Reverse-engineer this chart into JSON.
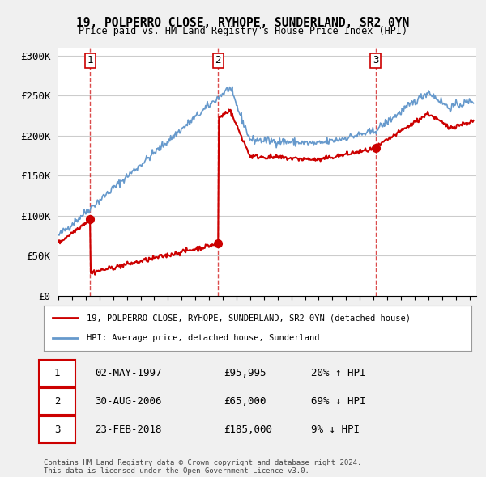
{
  "title": "19, POLPERRO CLOSE, RYHOPE, SUNDERLAND, SR2 0YN",
  "subtitle": "Price paid vs. HM Land Registry's House Price Index (HPI)",
  "ylim": [
    0,
    310000
  ],
  "xlim_start": 1995.0,
  "xlim_end": 2025.5,
  "yticks": [
    0,
    50000,
    100000,
    150000,
    200000,
    250000,
    300000
  ],
  "ytick_labels": [
    "£0",
    "£50K",
    "£100K",
    "£150K",
    "£200K",
    "£250K",
    "£300K"
  ],
  "sale_dates": [
    1997.33,
    2006.66,
    2018.15
  ],
  "sale_prices": [
    95995,
    65000,
    185000
  ],
  "sale_labels": [
    "1",
    "2",
    "3"
  ],
  "sale_color": "#cc0000",
  "hpi_line_color": "#6699cc",
  "price_line_color": "#cc0000",
  "legend_label_price": "19, POLPERRO CLOSE, RYHOPE, SUNDERLAND, SR2 0YN (detached house)",
  "legend_label_hpi": "HPI: Average price, detached house, Sunderland",
  "table_rows": [
    [
      "1",
      "02-MAY-1997",
      "£95,995",
      "20% ↑ HPI"
    ],
    [
      "2",
      "30-AUG-2006",
      "£65,000",
      "69% ↓ HPI"
    ],
    [
      "3",
      "23-FEB-2018",
      "£185,000",
      "9% ↓ HPI"
    ]
  ],
  "footer": "Contains HM Land Registry data © Crown copyright and database right 2024.\nThis data is licensed under the Open Government Licence v3.0.",
  "plot_bg_color": "#ffffff",
  "grid_color": "#cccccc",
  "fig_bg_color": "#f0f0f0"
}
